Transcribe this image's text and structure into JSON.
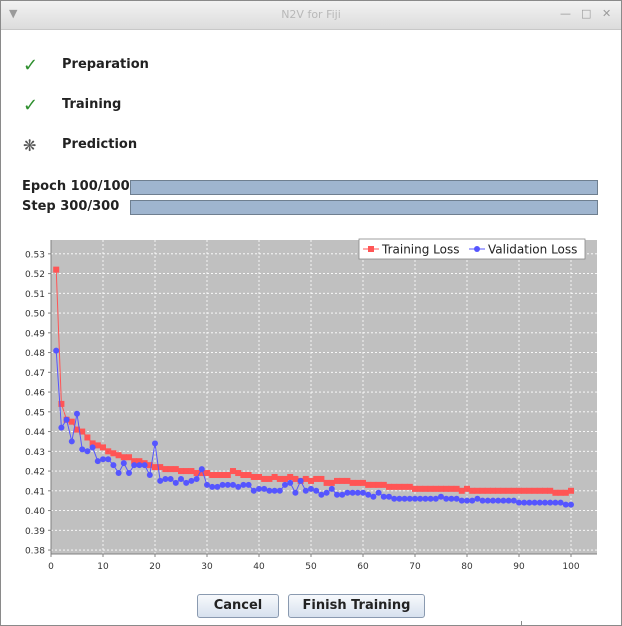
{
  "window": {
    "title": "N2V for Fiji"
  },
  "steps": [
    {
      "label": "Preparation",
      "status": "done",
      "icon": "check-icon"
    },
    {
      "label": "Training",
      "status": "done",
      "icon": "check-icon"
    },
    {
      "label": "Prediction",
      "status": "running",
      "icon": "spinner-icon"
    }
  ],
  "progress": {
    "epoch": {
      "label": "Epoch 100/100",
      "fraction": 1.0
    },
    "step": {
      "label": "Step 300/300",
      "fraction": 1.0
    }
  },
  "buttons": {
    "cancel": "Cancel",
    "finish": "Finish Training"
  },
  "colors": {
    "training": "#ff5555",
    "validation": "#5555ff",
    "plot_bg": "#c0c0c0",
    "progress_fill": "#9fb5cf"
  },
  "chart_data": {
    "type": "line",
    "title": "",
    "xlabel": "",
    "ylabel": "",
    "x_ticks": [
      0,
      10,
      20,
      30,
      40,
      50,
      60,
      70,
      80,
      90,
      100
    ],
    "y_ticks": [
      0.38,
      0.39,
      0.4,
      0.41,
      0.42,
      0.43,
      0.44,
      0.45,
      0.46,
      0.47,
      0.48,
      0.49,
      0.5,
      0.51,
      0.52,
      0.53
    ],
    "xlim": [
      0,
      105
    ],
    "ylim": [
      0.378,
      0.537
    ],
    "grid": true,
    "legend_position": "top-right",
    "x": [
      1,
      2,
      3,
      4,
      5,
      6,
      7,
      8,
      9,
      10,
      11,
      12,
      13,
      14,
      15,
      16,
      17,
      18,
      19,
      20,
      21,
      22,
      23,
      24,
      25,
      26,
      27,
      28,
      29,
      30,
      31,
      32,
      33,
      34,
      35,
      36,
      37,
      38,
      39,
      40,
      41,
      42,
      43,
      44,
      45,
      46,
      47,
      48,
      49,
      50,
      51,
      52,
      53,
      54,
      55,
      56,
      57,
      58,
      59,
      60,
      61,
      62,
      63,
      64,
      65,
      66,
      67,
      68,
      69,
      70,
      71,
      72,
      73,
      74,
      75,
      76,
      77,
      78,
      79,
      80,
      81,
      82,
      83,
      84,
      85,
      86,
      87,
      88,
      89,
      90,
      91,
      92,
      93,
      94,
      95,
      96,
      97,
      98,
      99,
      100
    ],
    "series": [
      {
        "name": "Training Loss",
        "marker": "square",
        "values": [
          0.522,
          0.454,
          0.446,
          0.445,
          0.441,
          0.44,
          0.437,
          0.434,
          0.433,
          0.432,
          0.43,
          0.429,
          0.428,
          0.427,
          0.427,
          0.425,
          0.425,
          0.424,
          0.423,
          0.422,
          0.422,
          0.421,
          0.421,
          0.421,
          0.42,
          0.42,
          0.42,
          0.419,
          0.419,
          0.419,
          0.418,
          0.418,
          0.418,
          0.418,
          0.42,
          0.419,
          0.418,
          0.418,
          0.417,
          0.417,
          0.416,
          0.416,
          0.417,
          0.416,
          0.416,
          0.417,
          0.416,
          0.415,
          0.416,
          0.415,
          0.416,
          0.416,
          0.414,
          0.414,
          0.415,
          0.415,
          0.415,
          0.414,
          0.414,
          0.414,
          0.413,
          0.413,
          0.413,
          0.413,
          0.412,
          0.412,
          0.412,
          0.412,
          0.412,
          0.411,
          0.411,
          0.411,
          0.411,
          0.411,
          0.411,
          0.411,
          0.411,
          0.411,
          0.41,
          0.411,
          0.41,
          0.41,
          0.41,
          0.41,
          0.41,
          0.41,
          0.41,
          0.41,
          0.41,
          0.41,
          0.41,
          0.41,
          0.41,
          0.41,
          0.41,
          0.41,
          0.409,
          0.409,
          0.409,
          0.41
        ]
      },
      {
        "name": "Validation Loss",
        "marker": "circle",
        "values": [
          0.481,
          0.442,
          0.446,
          0.435,
          0.449,
          0.431,
          0.43,
          0.432,
          0.425,
          0.426,
          0.426,
          0.423,
          0.419,
          0.424,
          0.419,
          0.423,
          0.423,
          0.423,
          0.418,
          0.434,
          0.415,
          0.416,
          0.416,
          0.414,
          0.416,
          0.414,
          0.415,
          0.416,
          0.421,
          0.413,
          0.412,
          0.412,
          0.413,
          0.413,
          0.413,
          0.412,
          0.413,
          0.413,
          0.41,
          0.411,
          0.411,
          0.41,
          0.41,
          0.41,
          0.413,
          0.414,
          0.409,
          0.415,
          0.41,
          0.411,
          0.41,
          0.408,
          0.409,
          0.411,
          0.408,
          0.408,
          0.409,
          0.409,
          0.409,
          0.409,
          0.408,
          0.407,
          0.409,
          0.407,
          0.407,
          0.406,
          0.406,
          0.406,
          0.406,
          0.406,
          0.406,
          0.406,
          0.406,
          0.406,
          0.407,
          0.406,
          0.406,
          0.406,
          0.405,
          0.405,
          0.405,
          0.406,
          0.405,
          0.405,
          0.405,
          0.405,
          0.405,
          0.405,
          0.405,
          0.404,
          0.404,
          0.404,
          0.404,
          0.404,
          0.404,
          0.404,
          0.404,
          0.404,
          0.403,
          0.403
        ]
      }
    ]
  }
}
